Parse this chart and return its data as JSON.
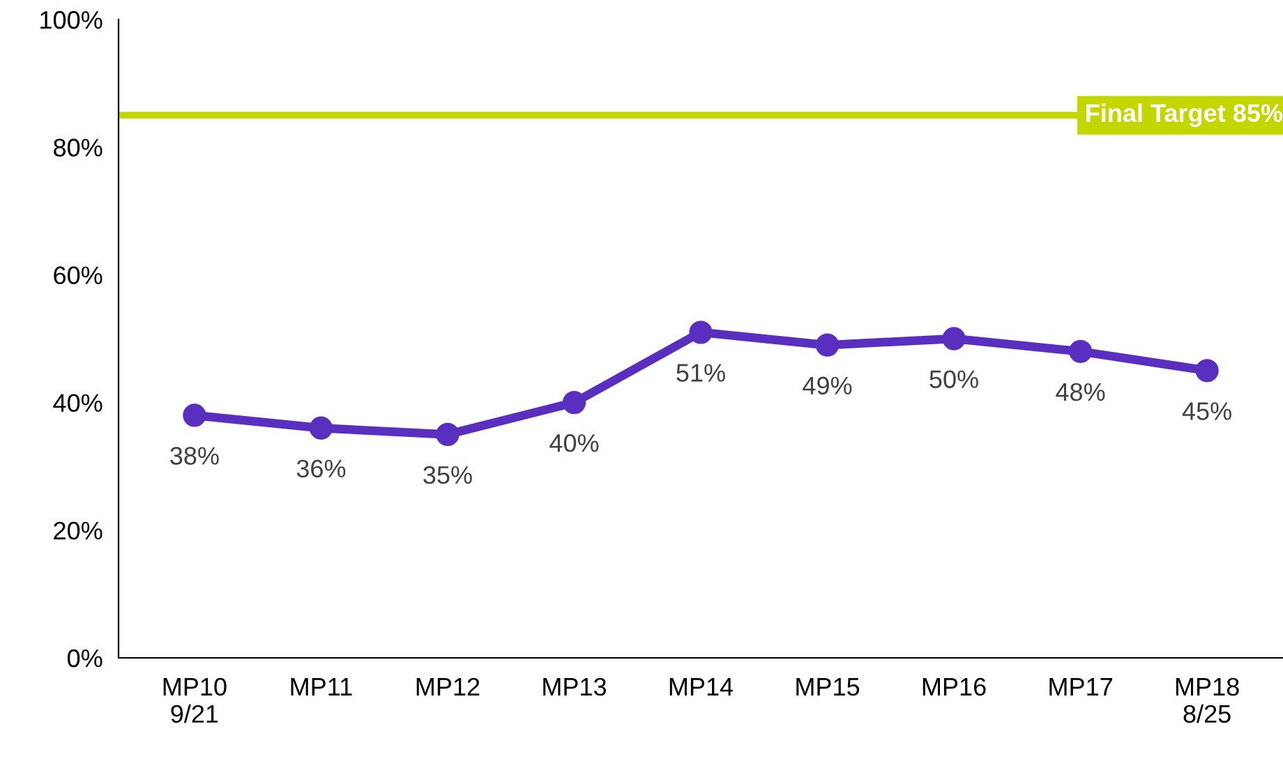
{
  "chart_data": {
    "type": "line",
    "categories": [
      "MP10\n9/21",
      "MP11",
      "MP12",
      "MP13",
      "MP14",
      "MP15",
      "MP16",
      "MP17",
      "MP18\n8/25"
    ],
    "series": [
      {
        "color": "#5a2fbf",
        "values": [
          38,
          36,
          35,
          40,
          51,
          49,
          50,
          48,
          45
        ],
        "value_labels": [
          "38%",
          "36%",
          "35%",
          "40%",
          "51%",
          "49%",
          "50%",
          "48%",
          "45%"
        ]
      }
    ],
    "ylim": [
      0,
      100
    ],
    "yticks": [
      {
        "value": 0,
        "label": "0%"
      },
      {
        "value": 20,
        "label": "20%"
      },
      {
        "value": 40,
        "label": "40%"
      },
      {
        "value": 60,
        "label": "60%"
      },
      {
        "value": 80,
        "label": "80%"
      },
      {
        "value": 100,
        "label": "100%"
      }
    ],
    "ref_lines": [
      {
        "axis": "y",
        "value": 85,
        "label": "Final Target 85%",
        "color": "#c4d600",
        "line_style": "solid"
      }
    ],
    "marker": "circle",
    "line_style": "solid",
    "grid": false,
    "legend": false
  }
}
